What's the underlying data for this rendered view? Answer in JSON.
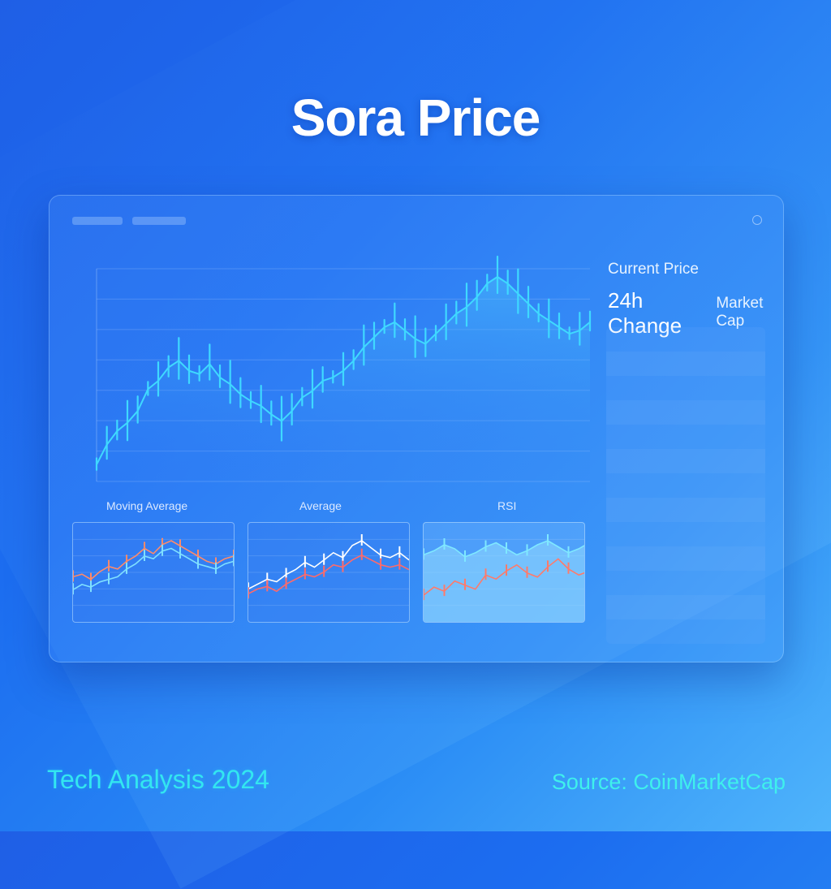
{
  "title": "Sora Price",
  "stats": {
    "current_price_label": "Current Price",
    "change_label": "24h Change",
    "market_cap_label": "Market Cap"
  },
  "sub_labels": {
    "moving_average": "Moving Average",
    "average": "Average",
    "rsi": "RSI"
  },
  "footer": {
    "left": "Tech Analysis 2024",
    "right": "Source: CoinMarketCap"
  },
  "colors": {
    "line": "#3fd9ff",
    "title": "#ffffff",
    "footer_accent": "#33e6f0"
  },
  "chart_data": [
    {
      "type": "area",
      "title": "Sora Price",
      "grid": true,
      "series": [
        {
          "values": [
            10,
            22,
            30,
            35,
            42,
            55,
            60,
            68,
            72,
            66,
            64,
            70,
            62,
            58,
            52,
            48,
            45,
            40,
            36,
            42,
            50,
            54,
            60,
            62,
            66,
            72,
            80,
            86,
            92,
            95,
            90,
            85,
            82,
            88,
            94,
            100,
            104,
            110,
            118,
            122,
            118,
            112,
            106,
            100,
            96,
            92,
            88,
            90,
            95
          ]
        }
      ]
    },
    {
      "type": "line",
      "series": [
        {
          "values": [
            30,
            32,
            28,
            34,
            38,
            36,
            42,
            46,
            52,
            48,
            55,
            58,
            54,
            50,
            46,
            42,
            40,
            44,
            46
          ]
        },
        {
          "values": [
            20,
            24,
            22,
            26,
            28,
            30,
            36,
            40,
            46,
            44,
            50,
            52,
            48,
            44,
            40,
            38,
            36,
            40,
            42
          ]
        }
      ]
    },
    {
      "type": "line",
      "series": [
        {
          "values": [
            22,
            26,
            30,
            28,
            34,
            38,
            44,
            40,
            46,
            52,
            48,
            58,
            62,
            56,
            50,
            48,
            52,
            46
          ]
        },
        {
          "values": [
            18,
            22,
            24,
            20,
            26,
            30,
            34,
            32,
            36,
            42,
            40,
            46,
            50,
            46,
            42,
            40,
            42,
            38
          ]
        }
      ]
    },
    {
      "type": "area",
      "series": [
        {
          "values": [
            60,
            64,
            70,
            66,
            58,
            62,
            68,
            72,
            66,
            60,
            64,
            70,
            74,
            68,
            62,
            66,
            72
          ]
        },
        {
          "values": [
            20,
            28,
            24,
            34,
            30,
            26,
            40,
            36,
            44,
            50,
            42,
            38,
            48,
            56,
            46,
            40,
            44
          ]
        }
      ]
    }
  ]
}
